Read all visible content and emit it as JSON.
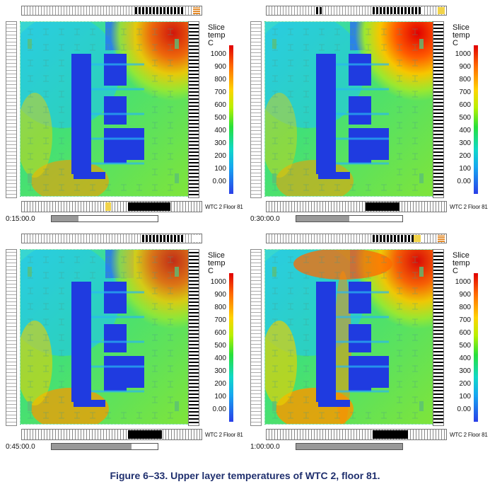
{
  "caption": "Figure 6–33.  Upper layer temperatures of WTC 2, floor 81.",
  "colorbar": {
    "title_line1": "Slice",
    "title_line2": "temp",
    "title_line3": "C",
    "ticks": [
      "1000",
      "900",
      "800",
      "700",
      "600",
      "500",
      "400",
      "300",
      "200",
      "100",
      "0.00"
    ],
    "colors": [
      "#e00000",
      "#ff6a00",
      "#ffd400",
      "#b8f000",
      "#27e03a",
      "#10d8c8",
      "#16a7f0",
      "#2a3fe8"
    ]
  },
  "floor_label": "WTC 2 Floor 81",
  "panels": [
    {
      "time": "0:15:00.0",
      "progress": 0.25,
      "hot_intensity": 0.9
    },
    {
      "time": "0:30:00.0",
      "progress": 0.5,
      "hot_intensity": 1.0
    },
    {
      "time": "0:45:00.0",
      "progress": 0.75,
      "hot_intensity": 0.8
    },
    {
      "time": "1:00:00.0",
      "progress": 1.0,
      "hot_intensity": 0.95
    }
  ]
}
